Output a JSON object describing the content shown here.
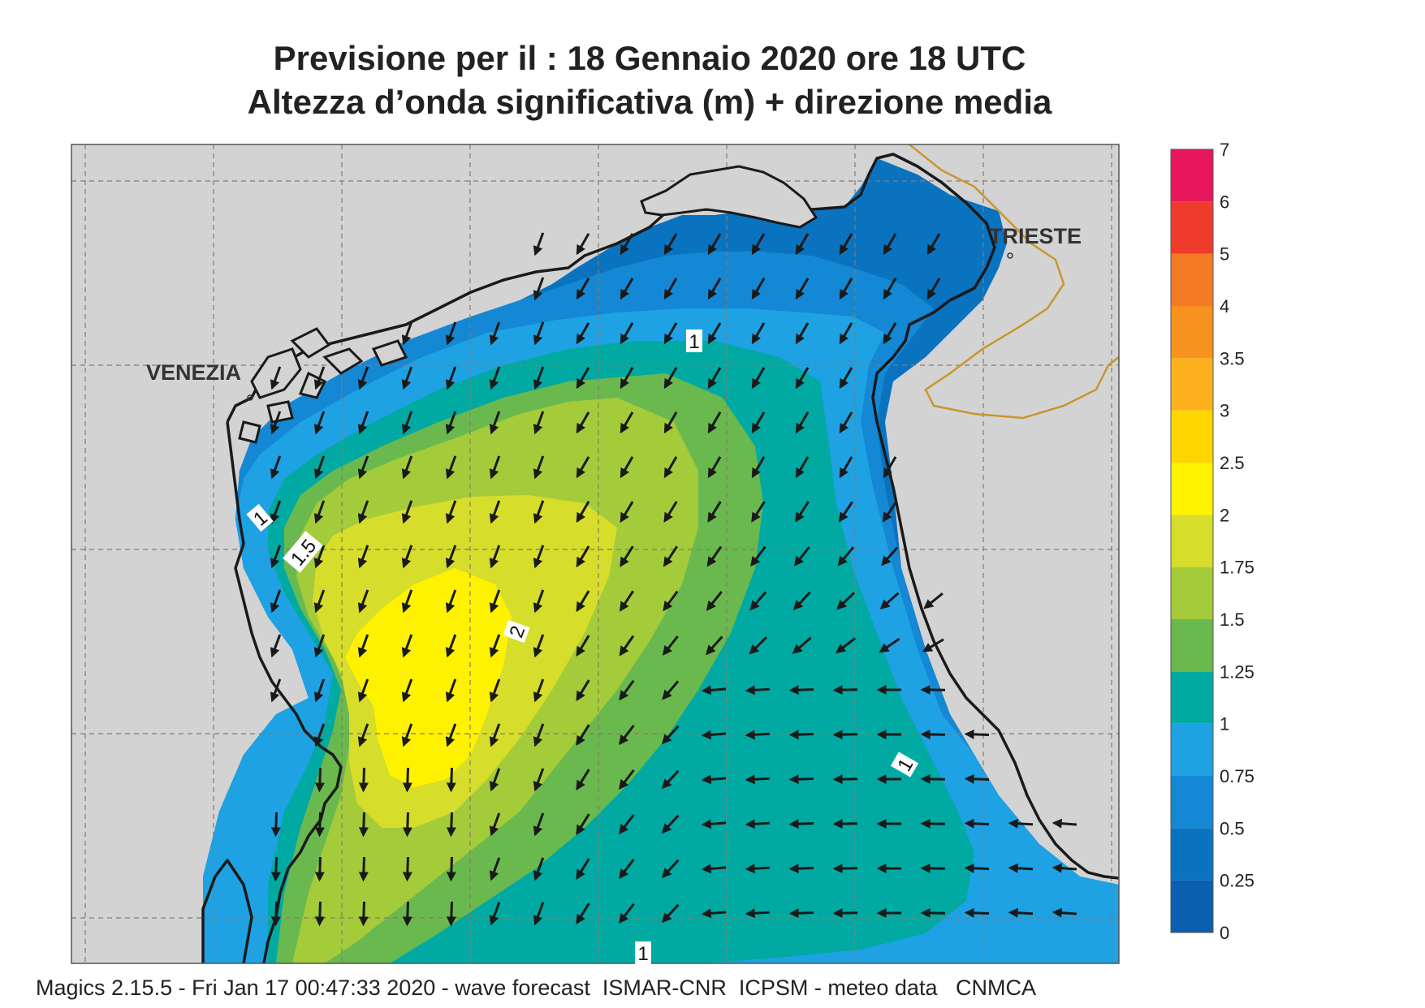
{
  "title": {
    "line1": "Previsione per il  :  18  Gennaio  2020    ore 18 UTC",
    "line2": "Altezza d’onda significativa (m) + direzione media"
  },
  "places": [
    {
      "id": "venezia",
      "name": "VENEZIA"
    },
    {
      "id": "trieste",
      "name": "TRIESTE"
    }
  ],
  "contour_labels": [
    {
      "id": "c-1-north",
      "text": "1"
    },
    {
      "id": "c-1-west",
      "text": "1"
    },
    {
      "id": "c-15-west",
      "text": "1.5"
    },
    {
      "id": "c-2-center",
      "text": "2"
    },
    {
      "id": "c-1-east",
      "text": "1"
    },
    {
      "id": "c-1-south",
      "text": "1"
    }
  ],
  "legend": {
    "unit": "m",
    "levels": [
      "0",
      "0.25",
      "0.5",
      "0.75",
      "1",
      "1.25",
      "1.5",
      "1.75",
      "2",
      "2.5",
      "3",
      "3.5",
      "4",
      "5",
      "6",
      "7"
    ],
    "colors": [
      "#0b5fb0",
      "#0a73c0",
      "#1488d4",
      "#1ea2e4",
      "#00aaa2",
      "#6ab94e",
      "#a4cb3a",
      "#d6dd2a",
      "#fff200",
      "#ffd500",
      "#fcb11c",
      "#f7921e",
      "#f47a25",
      "#ef3b2c",
      "#e8175d"
    ]
  },
  "colors": {
    "land": "#d3d3d3",
    "coast": "#1a1a1a",
    "border": "#c8962c",
    "grid": "#8a7a6a",
    "arrow": "#1a1a1a"
  },
  "footer": "Magics 2.15.5 - Fri Jan 17 00:47:33 2020 - wave forecast  ISMAR-CNR  ICPSM - meteo data   CNMCA"
}
